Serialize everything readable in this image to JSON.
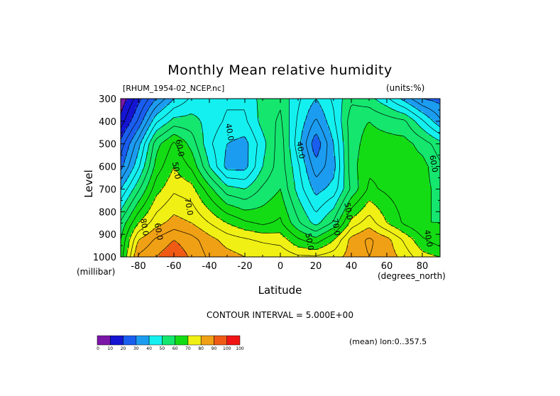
{
  "chart_data": {
    "type": "heatmap",
    "title": "Monthly Mean relative humidity",
    "source_file": "[RHUM_1954-02_NCEP.nc]",
    "units": "(units:%)",
    "xlabel": "Latitude",
    "x_unit": "(degrees_north)",
    "ylabel": "Level",
    "y_unit": "(millibar)",
    "xlim": [
      -90,
      90
    ],
    "ylim": [
      1000,
      300
    ],
    "x_ticks": [
      -80,
      -60,
      -40,
      -20,
      0,
      20,
      40,
      60,
      80
    ],
    "y_ticks": [
      300,
      400,
      500,
      600,
      700,
      800,
      900,
      1000
    ],
    "latitudes": [
      -90,
      -80,
      -70,
      -60,
      -50,
      -40,
      -30,
      -20,
      -10,
      0,
      10,
      20,
      30,
      40,
      50,
      60,
      70,
      80,
      90
    ],
    "levels": [
      1000,
      925,
      850,
      700,
      600,
      500,
      400,
      300
    ],
    "values": [
      [
        62,
        86,
        90,
        94,
        89,
        84,
        82,
        80,
        80,
        79,
        76,
        76,
        78,
        82,
        85,
        83,
        78,
        72,
        70
      ],
      [
        60,
        80,
        86,
        90,
        87,
        82,
        78,
        76,
        74,
        73,
        66,
        62,
        70,
        82,
        86,
        82,
        74,
        66,
        62
      ],
      [
        56,
        70,
        78,
        82,
        80,
        75,
        70,
        66,
        64,
        66,
        56,
        48,
        56,
        72,
        78,
        70,
        64,
        60,
        60
      ],
      [
        40,
        54,
        68,
        74,
        72,
        62,
        52,
        50,
        56,
        60,
        48,
        38,
        42,
        56,
        66,
        64,
        62,
        62,
        58
      ],
      [
        28,
        44,
        62,
        70,
        64,
        50,
        38,
        38,
        50,
        58,
        46,
        32,
        38,
        58,
        64,
        64,
        62,
        62,
        56
      ],
      [
        22,
        38,
        58,
        66,
        58,
        46,
        40,
        38,
        48,
        58,
        42,
        26,
        40,
        58,
        62,
        62,
        62,
        58,
        52
      ],
      [
        12,
        26,
        44,
        52,
        52,
        48,
        44,
        44,
        52,
        56,
        44,
        34,
        44,
        58,
        60,
        58,
        56,
        46,
        36
      ],
      [
        6,
        18,
        30,
        40,
        46,
        48,
        46,
        46,
        52,
        54,
        46,
        40,
        46,
        54,
        52,
        46,
        38,
        30,
        28
      ]
    ],
    "contour_labels": [
      "40.0",
      "40.0",
      "50.0",
      "50.0",
      "50.0",
      "60.0",
      "60.0",
      "60.0",
      "70.0",
      "70.0",
      "80.0",
      "40.0"
    ],
    "contour_note": "CONTOUR INTERVAL = 5.000E+00",
    "meta_note": "(mean) lon:0..357.5",
    "colorbar": {
      "boundaries": [
        0,
        10,
        20,
        30,
        40,
        50,
        60,
        70,
        80,
        90,
        100
      ],
      "colors": [
        "#7b16a8",
        "#1414d2",
        "#1a5ef0",
        "#1c9cf0",
        "#14f0f0",
        "#14e66e",
        "#14dc14",
        "#f0f014",
        "#f0a014",
        "#f05a14",
        "#f01414"
      ]
    },
    "grid": false
  }
}
